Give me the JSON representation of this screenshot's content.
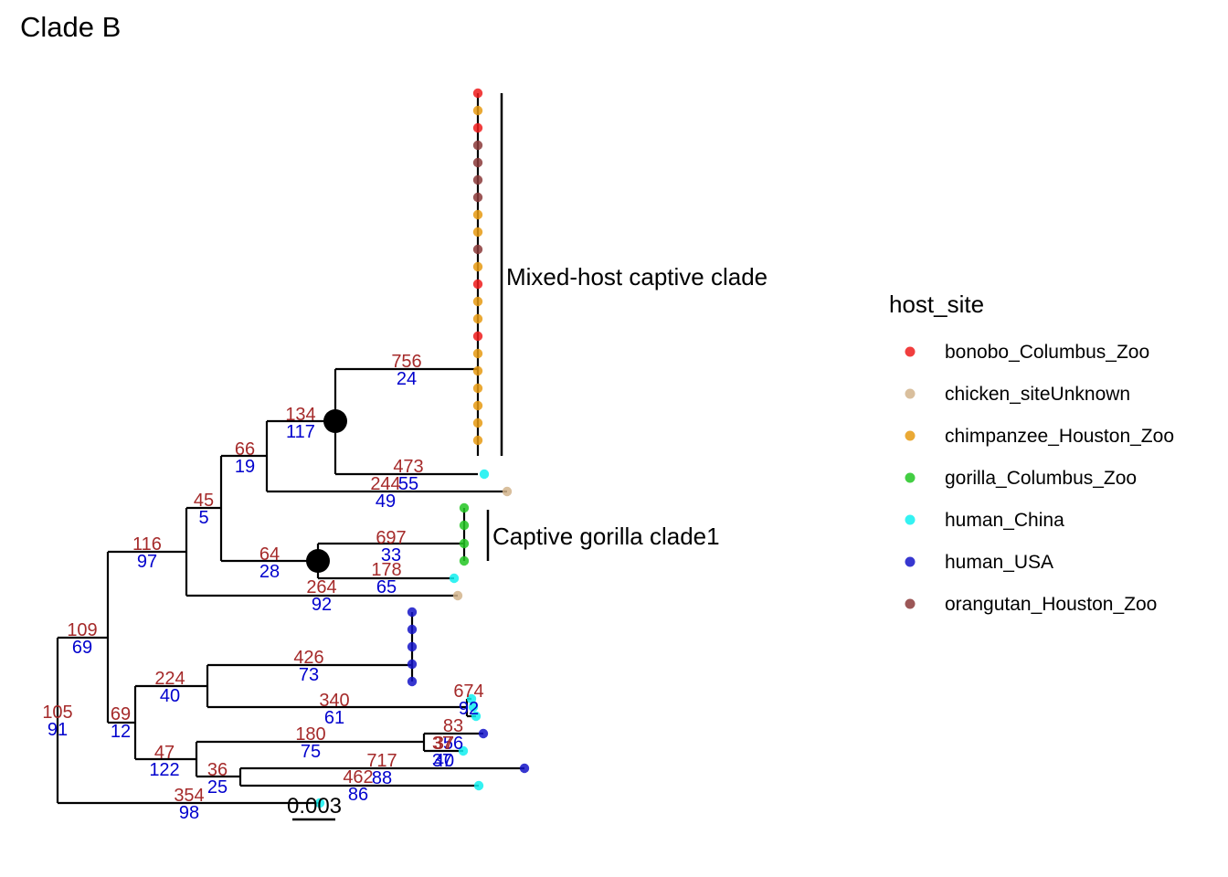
{
  "title": "Clade B",
  "colors": {
    "bonobo_Columbus_Zoo": "#ee1c1c",
    "chicken_siteUnknown": "#d2b48c",
    "chimpanzee_Houston_Zoo": "#e69a12",
    "gorilla_Columbus_Zoo": "#22c522",
    "human_China": "#11f0f0",
    "human_USA": "#1414c8",
    "orangutan_Houston_Zoo": "#8b3a3a"
  },
  "legend": {
    "title": "host_site",
    "entries": [
      "bonobo_Columbus_Zoo",
      "chicken_siteUnknown",
      "chimpanzee_Houston_Zoo",
      "gorilla_Columbus_Zoo",
      "human_China",
      "human_USA",
      "orangutan_Houston_Zoo"
    ]
  },
  "clade_labels": {
    "mixed": "Mixed-host captive clade",
    "gorilla": "Captive gorilla clade1"
  },
  "scale_bar": {
    "label": "0.003"
  },
  "node_labels": [
    {
      "top": "756",
      "bottom": "24"
    },
    {
      "top": "134",
      "bottom": "117"
    },
    {
      "top": "66",
      "bottom": "19"
    },
    {
      "top": "473",
      "bottom": "55"
    },
    {
      "top": "244",
      "bottom": "49"
    },
    {
      "top": "45",
      "bottom": "5"
    },
    {
      "top": "697",
      "bottom": "33"
    },
    {
      "top": "64",
      "bottom": "28"
    },
    {
      "top": "178",
      "bottom": "65"
    },
    {
      "top": "264",
      "bottom": "92"
    },
    {
      "top": "116",
      "bottom": "97"
    },
    {
      "top": "109",
      "bottom": "69"
    },
    {
      "top": "105",
      "bottom": "91"
    },
    {
      "top": "426",
      "bottom": "73"
    },
    {
      "top": "224",
      "bottom": "40"
    },
    {
      "top": "340",
      "bottom": "61"
    },
    {
      "top": "674",
      "bottom": "92"
    },
    {
      "top": "69",
      "bottom": "12"
    },
    {
      "top": "180",
      "bottom": "75"
    },
    {
      "top": "83",
      "bottom": "56"
    },
    {
      "top": "37",
      "bottom": "37"
    },
    {
      "top": "37",
      "bottom": "40"
    },
    {
      "top": "47",
      "bottom": "122"
    },
    {
      "top": "717",
      "bottom": "88"
    },
    {
      "top": "36",
      "bottom": "25"
    },
    {
      "top": "462",
      "bottom": "86"
    },
    {
      "top": "354",
      "bottom": "98"
    }
  ],
  "tips": [
    "bonobo_Columbus_Zoo",
    "chimpanzee_Houston_Zoo",
    "bonobo_Columbus_Zoo",
    "orangutan_Houston_Zoo",
    "orangutan_Houston_Zoo",
    "orangutan_Houston_Zoo",
    "orangutan_Houston_Zoo",
    "chimpanzee_Houston_Zoo",
    "chimpanzee_Houston_Zoo",
    "orangutan_Houston_Zoo",
    "chimpanzee_Houston_Zoo",
    "bonobo_Columbus_Zoo",
    "chimpanzee_Houston_Zoo",
    "chimpanzee_Houston_Zoo",
    "bonobo_Columbus_Zoo",
    "chimpanzee_Houston_Zoo",
    "chimpanzee_Houston_Zoo",
    "chimpanzee_Houston_Zoo",
    "chimpanzee_Houston_Zoo",
    "chimpanzee_Houston_Zoo",
    "chimpanzee_Houston_Zoo",
    "human_China",
    "chicken_siteUnknown",
    "gorilla_Columbus_Zoo",
    "gorilla_Columbus_Zoo",
    "gorilla_Columbus_Zoo",
    "gorilla_Columbus_Zoo",
    "human_China",
    "chicken_siteUnknown",
    "human_USA",
    "human_USA",
    "human_USA",
    "human_USA",
    "human_USA",
    "human_China",
    "human_China",
    "human_China",
    "human_USA",
    "human_China",
    "human_USA",
    "human_China",
    "human_China"
  ]
}
